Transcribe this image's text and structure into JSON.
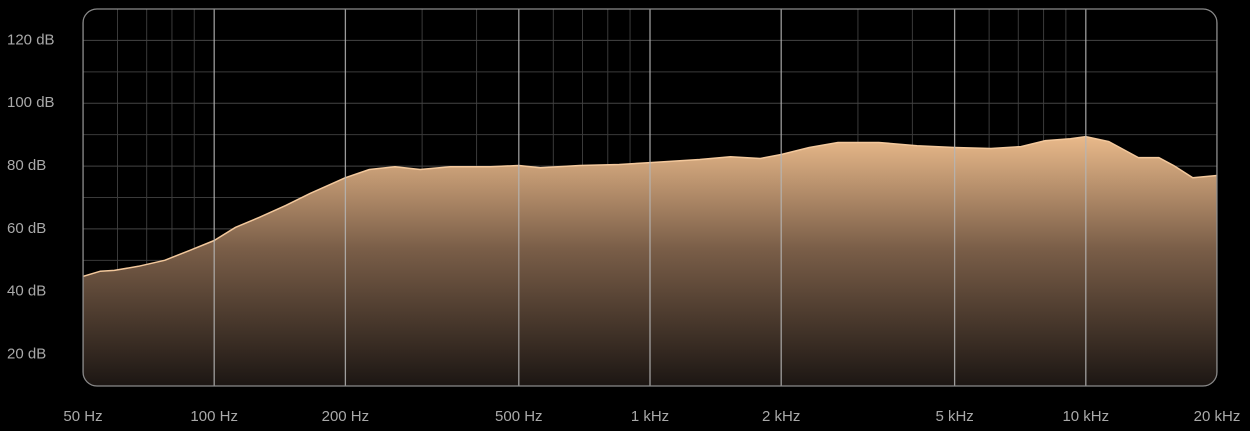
{
  "chart_data": {
    "type": "area",
    "xscale": "log",
    "x": [
      50,
      54.7,
      59,
      67,
      77,
      88,
      100,
      112,
      127,
      146,
      166,
      200,
      227,
      260,
      297,
      348,
      430,
      500,
      560,
      690,
      850,
      1000,
      1300,
      1530,
      1790,
      2000,
      2320,
      2700,
      3350,
      4100,
      5000,
      6060,
      7100,
      8080,
      9220,
      10000,
      11300,
      13200,
      14700,
      15900,
      17600,
      20000
    ],
    "series": [
      {
        "color": "#f3c89c",
        "values": [
          44.9,
          46.5,
          46.8,
          48.1,
          50,
          53.2,
          56.3,
          60.5,
          63.7,
          67.5,
          71.3,
          76.3,
          78.9,
          79.8,
          78.9,
          79.8,
          79.8,
          80.2,
          79.5,
          80.2,
          80.5,
          81.1,
          82.1,
          83,
          82.4,
          83.7,
          85.9,
          87.5,
          87.5,
          86.5,
          85.9,
          85.6,
          86.2,
          88.1,
          88.7,
          89.4,
          87.8,
          82.7,
          82.7,
          80.2,
          76.3,
          77
        ]
      }
    ],
    "xlim": [
      50,
      20000
    ],
    "ylim": [
      10,
      130
    ],
    "xticks": [
      {
        "value": 50,
        "label": "50 Hz"
      },
      {
        "value": 100,
        "label": "100 Hz"
      },
      {
        "value": 200,
        "label": "200 Hz"
      },
      {
        "value": 500,
        "label": "500 Hz"
      },
      {
        "value": 1000,
        "label": "1 kHz"
      },
      {
        "value": 2000,
        "label": "2 kHz"
      },
      {
        "value": 5000,
        "label": "5 kHz"
      },
      {
        "value": 10000,
        "label": "10 kHz"
      },
      {
        "value": 20000,
        "label": "20 kHz"
      }
    ],
    "yticks": [
      {
        "value": 20,
        "label": "20 dB"
      },
      {
        "value": 40,
        "label": "40 dB"
      },
      {
        "value": 60,
        "label": "60 dB"
      },
      {
        "value": 80,
        "label": "80 dB"
      },
      {
        "value": 100,
        "label": "100 dB"
      },
      {
        "value": 120,
        "label": "120 dB"
      }
    ],
    "x_minor_ticks": [
      60,
      70,
      80,
      90,
      300,
      400,
      600,
      700,
      800,
      900,
      3000,
      4000,
      6000,
      7000,
      8000,
      9000
    ],
    "y_minor_ticks": [
      30,
      50,
      70,
      90,
      110
    ],
    "grid": true
  }
}
